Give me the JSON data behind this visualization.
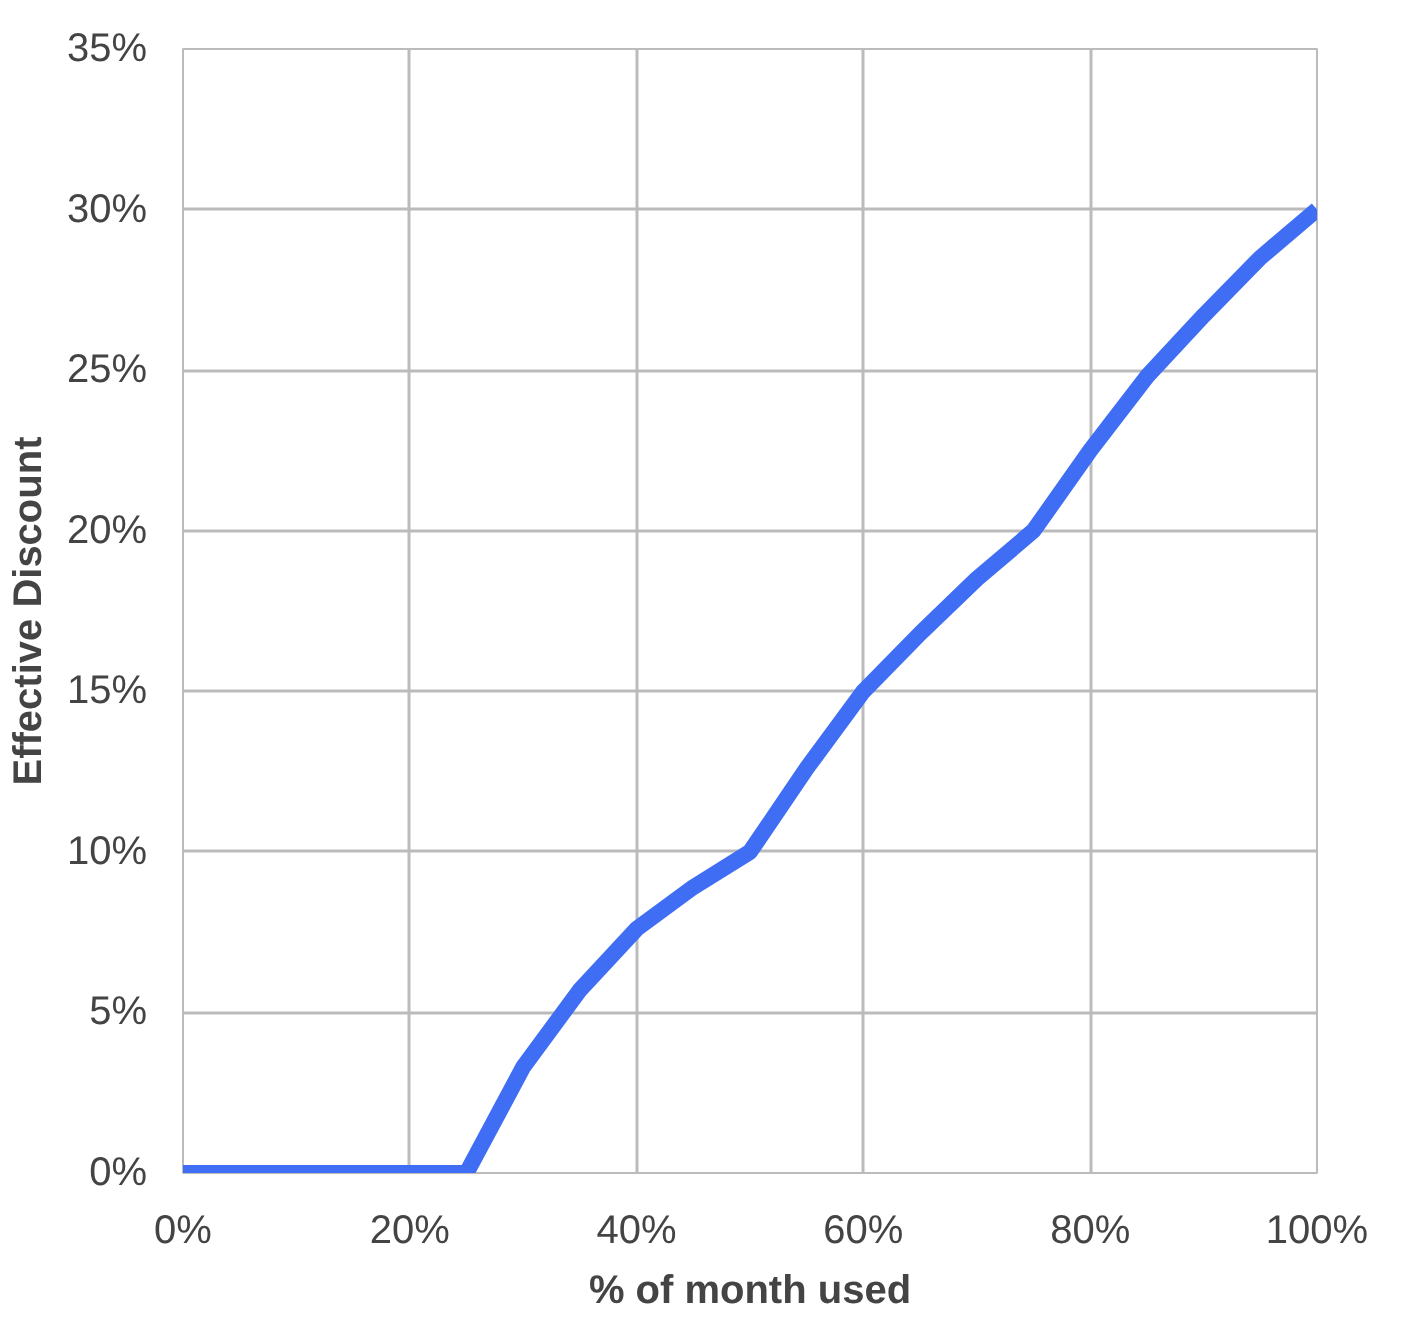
{
  "chart_data": {
    "type": "line",
    "xlabel": "% of month used",
    "ylabel": "Effective Discount",
    "x": [
      0,
      5,
      10,
      15,
      20,
      25,
      30,
      35,
      40,
      45,
      50,
      55,
      60,
      65,
      70,
      75,
      80,
      85,
      90,
      95,
      100
    ],
    "series": [
      {
        "color": "#3f6ef5",
        "values": [
          0,
          0,
          0,
          0,
          0,
          0,
          3.3,
          5.7,
          7.6,
          8.9,
          10,
          12.6,
          15,
          16.8,
          18.5,
          20,
          22.5,
          24.8,
          26.7,
          28.5,
          30
        ]
      }
    ],
    "xlim": [
      0,
      100
    ],
    "ylim": [
      0,
      35
    ],
    "xticks": [
      {
        "value": 0,
        "label": "0%"
      },
      {
        "value": 20,
        "label": "20%"
      },
      {
        "value": 40,
        "label": "40%"
      },
      {
        "value": 60,
        "label": "60%"
      },
      {
        "value": 80,
        "label": "80%"
      },
      {
        "value": 100,
        "label": "100%"
      }
    ],
    "yticks": [
      {
        "value": 0,
        "label": "0%"
      },
      {
        "value": 5,
        "label": "5%"
      },
      {
        "value": 10,
        "label": "10%"
      },
      {
        "value": 15,
        "label": "15%"
      },
      {
        "value": 20,
        "label": "20%"
      },
      {
        "value": 25,
        "label": "25%"
      },
      {
        "value": 30,
        "label": "30%"
      },
      {
        "value": 35,
        "label": "35%"
      }
    ],
    "grid": true,
    "marker": "none",
    "line_style": "solid"
  }
}
